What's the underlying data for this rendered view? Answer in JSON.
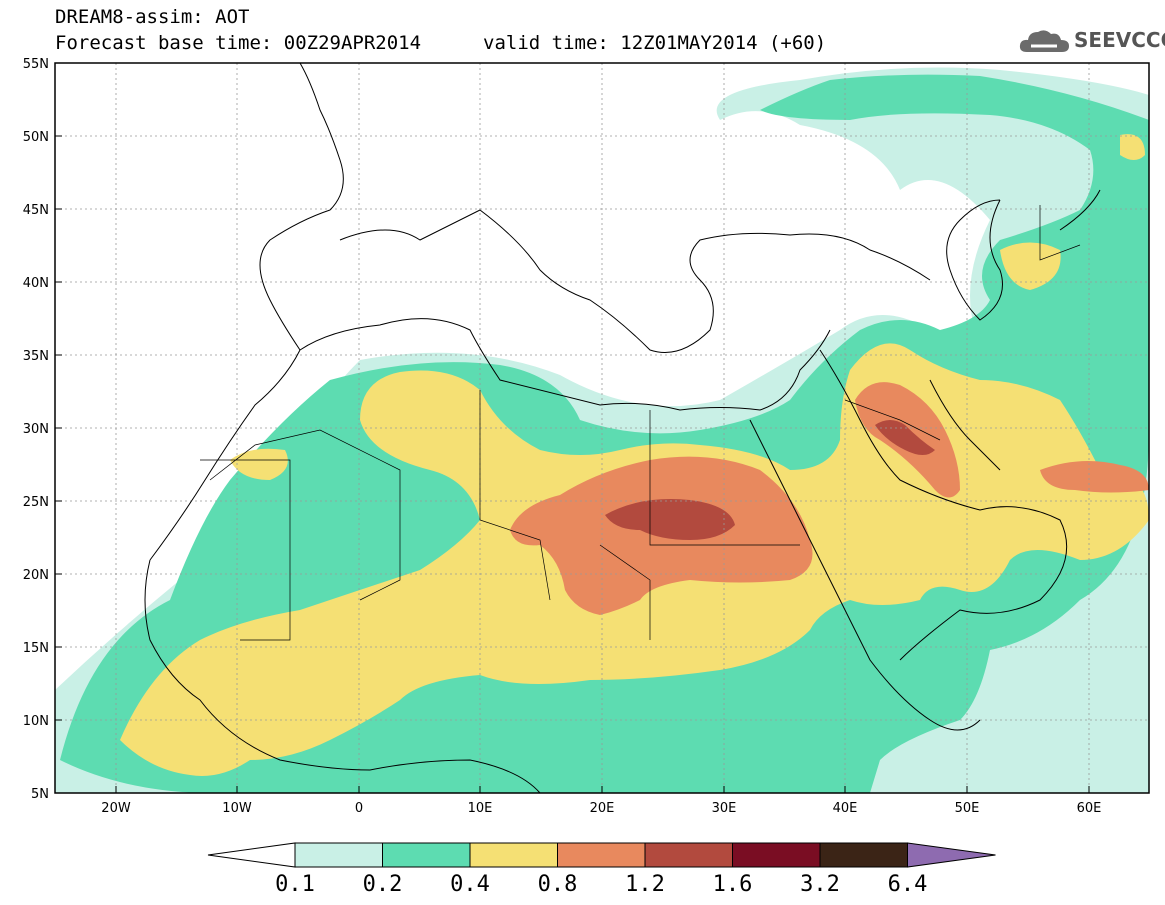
{
  "header": {
    "title": "DREAM8-assim: AOT",
    "base_time": "Forecast base time: 00Z29APR2014",
    "valid_time": "valid time: 12Z01MAY2014 (+60)"
  },
  "logo": {
    "text": "SEEVCCC",
    "icon": "cloud-icon"
  },
  "map": {
    "lat_labels": [
      "55N",
      "50N",
      "45N",
      "40N",
      "35N",
      "30N",
      "25N",
      "20N",
      "15N",
      "10N",
      "5N"
    ],
    "lon_labels": [
      "20W",
      "10W",
      "0",
      "10E",
      "20E",
      "30E",
      "40E",
      "50E",
      "60E"
    ],
    "lon_range": [
      -25,
      65
    ],
    "lat_range": [
      5,
      55
    ],
    "grid": true
  },
  "colorbar": {
    "labels": [
      "0.1",
      "0.2",
      "0.4",
      "0.8",
      "1.2",
      "1.6",
      "3.2",
      "6.4"
    ],
    "colors": [
      "#ffffff",
      "#c9f0e6",
      "#5ddcb1",
      "#f5e074",
      "#e8895e",
      "#b24a3e",
      "#7a0d23",
      "#3b2416",
      "#8e6bb0"
    ]
  }
}
